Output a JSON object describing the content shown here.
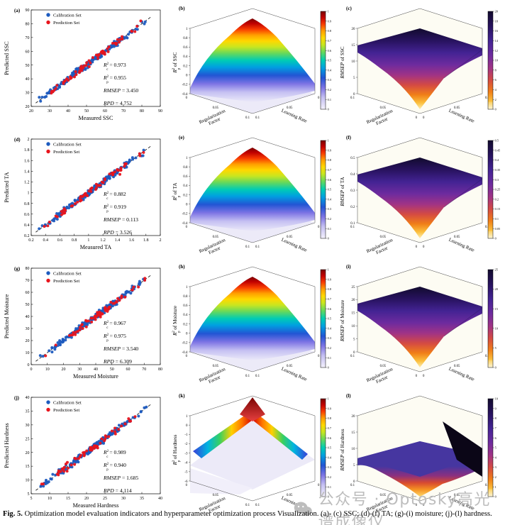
{
  "colors": {
    "calibration": "#1d5bbf",
    "prediction": "#e8141c",
    "watermark_gray": "#bdbdbd"
  },
  "legend": {
    "calibration": "Calibration Set",
    "prediction": "Prediction Set"
  },
  "labels": {
    "r2_base": "R",
    "r2_sup": "2",
    "sub_c": "c",
    "sub_p": "p",
    "eq": " = ",
    "rmsep": "RMSEP",
    "rpd": "RPD",
    "of": " of ",
    "reg_factor_line1": "Regularization",
    "reg_factor_line2": "Factor",
    "learning_rate": "Learning Rate"
  },
  "caption": {
    "bold": "Fig. 5.",
    "text": " Optimization model evaluation indicators and hyperparameter optimization process Visualization. (a)- (c) SSC; (d)-(f) TA; (g)-(i) moisture; (j)-(l) hardness."
  },
  "watermark": {
    "icon": "wechat-icon",
    "text": "公众号 · Optosky高光谱成像仪"
  },
  "chart_data": [
    {
      "panel": "a",
      "type": "scatter",
      "xlabel": "Measured SSC",
      "ylabel": "Predicted SSC",
      "xlim": [
        20,
        90
      ],
      "ylim": [
        20,
        90
      ],
      "xticks": [
        "20",
        "30",
        "40",
        "50",
        "60",
        "70",
        "80",
        "90"
      ],
      "yticks": [
        "20",
        "30",
        "40",
        "50",
        "60",
        "70",
        "80",
        "90"
      ],
      "series": [
        {
          "name": "Calibration Set"
        },
        {
          "name": "Prediction Set"
        }
      ],
      "stats": {
        "r2c": "0.973",
        "r2p": "0.955",
        "rmsep": "3.450",
        "rpd": "4.752"
      },
      "seed": 11
    },
    {
      "panel": "b",
      "type": "r2surface",
      "subject": "SSC",
      "zlim": [
        -0.4,
        1
      ],
      "zticks": [
        "1",
        "0.8",
        "0.6",
        "0.4",
        "0.2",
        "0",
        "-0.2",
        "-0.4"
      ],
      "xticks": [
        "0",
        "0.05",
        "0.1"
      ],
      "yticks": [
        "0.1",
        "0.05",
        "0"
      ],
      "colorbar": {
        "min": 0,
        "max": 1,
        "ticks": [
          "1",
          "0.9",
          "0.8",
          "0.7",
          "0.6",
          "0.5",
          "0.4",
          "0.3",
          "0.2",
          "0.1",
          "0"
        ],
        "colormap": "jet"
      }
    },
    {
      "panel": "c",
      "type": "rmsepsurface",
      "subject": "SSC",
      "zlim": [
        0,
        20
      ],
      "zticks": [
        "20",
        "15",
        "10",
        "5",
        "0"
      ],
      "xticks": [
        "0.1",
        "0.05",
        "0"
      ],
      "yticks": [
        "0",
        "0.05",
        "0.1"
      ],
      "colorbar": {
        "min": 0,
        "max": 20,
        "ticks": [
          "20",
          "18",
          "16",
          "14",
          "12",
          "10",
          "8",
          "6",
          "4",
          "2",
          "0"
        ],
        "colormap": "heat"
      }
    },
    {
      "panel": "d",
      "type": "scatter",
      "xlabel": "Measured TA",
      "ylabel": "Predicted TA",
      "xlim": [
        0.2,
        2
      ],
      "ylim": [
        0.2,
        2
      ],
      "xticks": [
        "0.2",
        "0.4",
        "0.6",
        "0.8",
        "1",
        "1.2",
        "1.4",
        "1.6",
        "1.8",
        "2"
      ],
      "yticks": [
        "0.2",
        "0.4",
        "0.6",
        "0.8",
        "1",
        "1.2",
        "1.4",
        "1.6",
        "1.8",
        "2"
      ],
      "series": [
        {
          "name": "Calibration Set"
        },
        {
          "name": "Prediction Set"
        }
      ],
      "stats": {
        "r2c": "0.882",
        "r2p": "0.919",
        "rmsep": "0.113",
        "rpd": "3.526"
      },
      "seed": 22
    },
    {
      "panel": "e",
      "type": "r2surface",
      "subject": "TA",
      "zlim": [
        -0.4,
        1
      ],
      "zticks": [
        "1",
        "0.8",
        "0.6",
        "0.4",
        "0.2",
        "0",
        "-0.2",
        "-0.4"
      ],
      "xticks": [
        "0",
        "0.05",
        "0.1"
      ],
      "yticks": [
        "0.1",
        "0.05",
        "0"
      ],
      "colorbar": {
        "min": 0,
        "max": 1,
        "ticks": [
          "1",
          "0.9",
          "0.8",
          "0.7",
          "0.6",
          "0.5",
          "0.4",
          "0.3",
          "0.2",
          "0.1",
          "0"
        ],
        "colormap": "jet"
      }
    },
    {
      "panel": "f",
      "type": "rmsepsurface",
      "subject": "TA",
      "zlim": [
        0.1,
        0.5
      ],
      "zticks": [
        "0.5",
        "0.4",
        "0.3",
        "0.2",
        "0.1"
      ],
      "xticks": [
        "0.1",
        "0.05",
        "0"
      ],
      "yticks": [
        "0",
        "0.05",
        "0.1"
      ],
      "colorbar": {
        "min": 0,
        "max": 0.5,
        "ticks": [
          "0.5",
          "0.45",
          "0.4",
          "0.35",
          "0.3",
          "0.25",
          "0.2",
          "0.15",
          "0.1",
          "0.05",
          "0"
        ],
        "colormap": "heat"
      }
    },
    {
      "panel": "g",
      "type": "scatter",
      "xlabel": "Measured Moisture",
      "ylabel": "Predicted Moisture",
      "xlim": [
        0,
        80
      ],
      "ylim": [
        0,
        80
      ],
      "xticks": [
        "0",
        "10",
        "20",
        "30",
        "40",
        "50",
        "60",
        "70",
        "80"
      ],
      "yticks": [
        "0",
        "10",
        "20",
        "30",
        "40",
        "50",
        "60",
        "70",
        "80"
      ],
      "series": [
        {
          "name": "Calibration Set"
        },
        {
          "name": "Prediction Set"
        }
      ],
      "stats": {
        "r2c": "0.967",
        "r2p": "0.975",
        "rmsep": "3.540",
        "rpd": "6.309"
      },
      "seed": 33
    },
    {
      "panel": "h",
      "type": "r2surface",
      "subject": "Moisture",
      "zlim": [
        -0.4,
        1
      ],
      "zticks": [
        "1",
        "0.8",
        "0.6",
        "0.4",
        "0.2",
        "0",
        "-0.2",
        "-0.4"
      ],
      "xticks": [
        "0",
        "0.05",
        "0.1"
      ],
      "yticks": [
        "0.1",
        "0.05",
        "0"
      ],
      "colorbar": {
        "min": 0,
        "max": 1,
        "ticks": [
          "1",
          "0.9",
          "0.8",
          "0.7",
          "0.6",
          "0.5",
          "0.4",
          "0.3",
          "0.2",
          "0.1",
          "0"
        ],
        "colormap": "jet"
      }
    },
    {
      "panel": "i",
      "type": "rmsepsurface",
      "subject": "Moisture",
      "zlim": [
        0,
        25
      ],
      "zticks": [
        "25",
        "20",
        "15",
        "10",
        "5",
        "0"
      ],
      "xticks": [
        "0.1",
        "0.05",
        "0"
      ],
      "yticks": [
        "0",
        "0.05",
        "0.1"
      ],
      "colorbar": {
        "min": 0,
        "max": 25,
        "ticks": [
          "25",
          "20",
          "15",
          "10",
          "5",
          "0"
        ],
        "colormap": "heat"
      }
    },
    {
      "panel": "j",
      "type": "scatter",
      "xlabel": "Measured Hardness",
      "ylabel": "Predicted Hardness",
      "xlim": [
        5,
        40
      ],
      "ylim": [
        5,
        40
      ],
      "xticks": [
        "5",
        "10",
        "15",
        "20",
        "25",
        "30",
        "35",
        "40"
      ],
      "yticks": [
        "5",
        "10",
        "15",
        "20",
        "25",
        "30",
        "35",
        "40"
      ],
      "series": [
        {
          "name": "Calibration Set"
        },
        {
          "name": "Prediction Set"
        }
      ],
      "stats": {
        "r2c": "0.989",
        "r2p": "0.940",
        "rmsep": "1.685",
        "rpd": "4.114"
      },
      "seed": 44
    },
    {
      "panel": "k",
      "type": "r2surface",
      "subject": "Hardness",
      "variant": "ridge",
      "zlim": [
        -6,
        1
      ],
      "zticks": [
        "1",
        "0",
        "-1",
        "-2",
        "-3",
        "-4",
        "-5",
        "-6"
      ],
      "xticks": [
        "0",
        "0.05",
        "0.1"
      ],
      "yticks": [
        "0.1",
        "0.05",
        "0"
      ],
      "colorbar": {
        "min": 0,
        "max": 1,
        "ticks": [
          "1",
          "0.9",
          "0.8",
          "0.7",
          "0.6",
          "0.5",
          "0.4",
          "0.3",
          "0.2",
          "0.1",
          "0"
        ],
        "colormap": "jet"
      }
    },
    {
      "panel": "l",
      "type": "rmsepsurface",
      "subject": "Hardness",
      "variant": "flat",
      "zlim": [
        0,
        20
      ],
      "zticks": [
        "20",
        "15",
        "10",
        "5",
        "0"
      ],
      "xticks": [
        "0.1",
        "0.05",
        "0"
      ],
      "yticks": [
        "0",
        "0.05",
        "0.1"
      ],
      "colorbar": {
        "min": 0,
        "max": 10,
        "ticks": [
          "10",
          "9",
          "8",
          "7",
          "6",
          "5",
          "4",
          "3",
          "2",
          "1",
          "0"
        ],
        "colormap": "heat"
      }
    }
  ]
}
